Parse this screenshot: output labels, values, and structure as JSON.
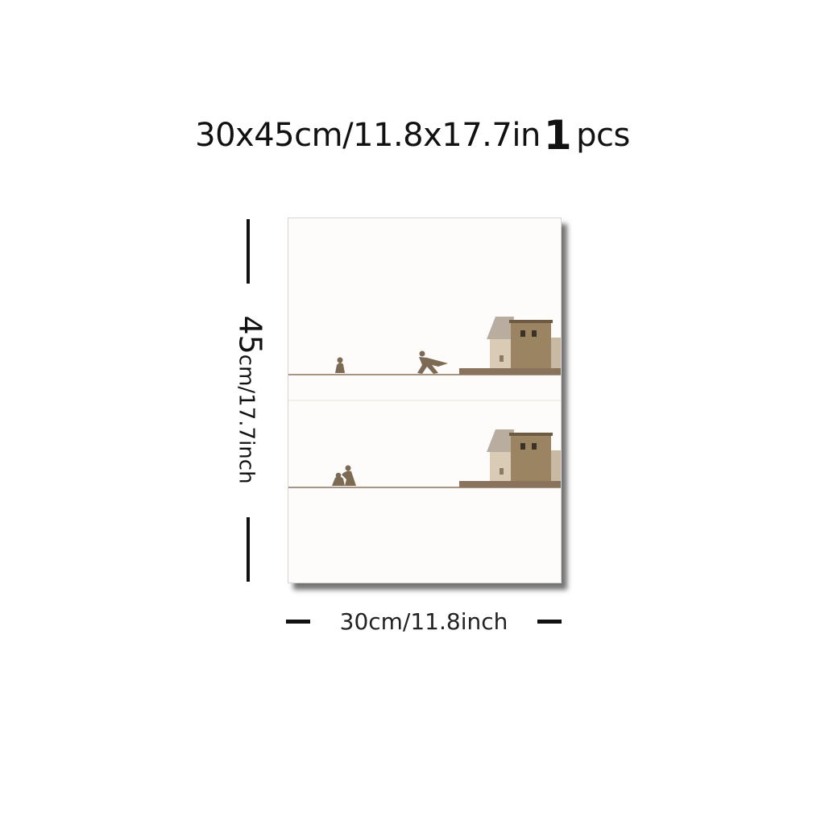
{
  "title": {
    "size": "30x45cm/11.8x17.7in",
    "quantity": "1",
    "unit": "pcs"
  },
  "dimensions": {
    "height_big": "45",
    "height_rest": "cm/17.7",
    "height_unit": "inch",
    "width_label": "30cm/11.8inch"
  },
  "colors": {
    "canvas": "#fdfcfa",
    "house_light": "#d9cbb6",
    "house_dark": "#9b8462",
    "roof": "#b9ada0",
    "figure": "#7d6a55",
    "ground": "#8a735c"
  }
}
